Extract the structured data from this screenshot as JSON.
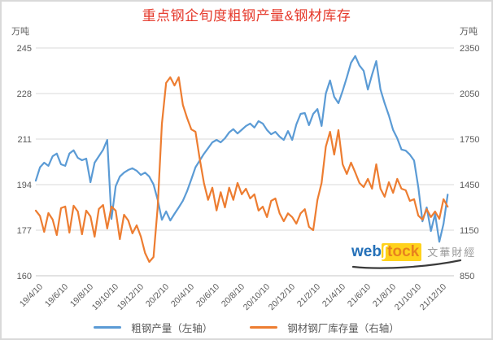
{
  "title": "重点钢企旬度粗钢产量&钢材库存",
  "left_axis": {
    "unit": "万吨",
    "ticks": [
      245,
      228,
      211,
      194,
      177,
      160
    ]
  },
  "right_axis": {
    "unit": "万吨",
    "ticks": [
      2350,
      2050,
      1750,
      1450,
      1150,
      850
    ]
  },
  "legend": [
    {
      "label": "粗钢产量（左轴）",
      "color": "#5B9BD5"
    },
    {
      "label": "钢材钢厂库存量（右轴）",
      "color": "#ED7D31"
    }
  ],
  "watermark": {
    "brand_prefix": "web",
    "brand_mark": "∫",
    "brand_suffix": "tock",
    "caption": "文華財經"
  },
  "colors": {
    "title": "#e5392b",
    "series_blue": "#5B9BD5",
    "series_orange": "#ED7D31",
    "gridline": "#d9d9d9",
    "axis_text": "#595959",
    "watermark_blue": "#2470b8",
    "watermark_orange": "#e8821e",
    "watermark_yellow": "#ffd21c"
  },
  "chart_data": {
    "type": "line",
    "title": "重点钢企旬度粗钢产量&钢材库存",
    "x_tick_labels": [
      "19/4/10",
      "19/6/10",
      "19/8/10",
      "19/10/10",
      "19/12/10",
      "20/2/10",
      "20/4/10",
      "20/6/10",
      "20/8/10",
      "20/10/10",
      "20/12/10",
      "21/2/10",
      "21/4/10",
      "21/6/10",
      "21/8/10",
      "21/10/10",
      "21/12/10"
    ],
    "points_per_tick": 6,
    "grid": true,
    "legend_position": "bottom",
    "left_ylim": [
      160,
      245
    ],
    "right_ylim": [
      850,
      2350
    ],
    "left_unit": "万吨",
    "right_unit": "万吨",
    "series": [
      {
        "name": "粗钢产量（左轴）",
        "axis": "left",
        "color": "#5B9BD5",
        "values": [
          195.5,
          200.5,
          202.2,
          201,
          204.6,
          205.6,
          201.6,
          201,
          205.6,
          206.8,
          204,
          203.1,
          203.7,
          194.9,
          202.2,
          204.6,
          207,
          210.7,
          181.2,
          193.4,
          197,
          198.5,
          199.5,
          200.1,
          199.2,
          197.6,
          198.5,
          197,
          194.1,
          188.4,
          180.9,
          184,
          180.6,
          183.1,
          185.5,
          188,
          191.6,
          196,
          200.5,
          203,
          205.5,
          207.6,
          209.8,
          210.7,
          209.8,
          211.3,
          213.5,
          214.7,
          213.1,
          214.5,
          215.9,
          216.8,
          215.3,
          217.7,
          216.8,
          214.4,
          212.8,
          213.7,
          211.9,
          210.7,
          214,
          210.7,
          216.5,
          220.4,
          220.7,
          216.2,
          220.4,
          222.2,
          215.9,
          228,
          232.9,
          226.8,
          224.4,
          229,
          234,
          239.5,
          242,
          238.5,
          236.5,
          229.5,
          235,
          240.1,
          229.5,
          224.4,
          219.8,
          214.4,
          211.3,
          207.1,
          206.7,
          205.2,
          203,
          193,
          180.3,
          185.5,
          176.7,
          183,
          172.7,
          179.4,
          190.3
        ]
      },
      {
        "name": "钢材钢厂库存量（右轴）",
        "axis": "right",
        "color": "#ED7D31",
        "values": [
          1279,
          1243,
          1139,
          1263,
          1220,
          1118,
          1295,
          1306,
          1134,
          1311,
          1273,
          1123,
          1279,
          1241,
          1107,
          1290,
          1316,
          1161,
          1306,
          1279,
          1091,
          1252,
          1214,
          1129,
          1182,
          1107,
          1000,
          941,
          973,
          1300,
          1850,
          2120,
          2157,
          2103,
          2157,
          1975,
          1889,
          1814,
          1798,
          1620,
          1460,
          1350,
          1430,
          1280,
          1400,
          1300,
          1430,
          1350,
          1461,
          1386,
          1423,
          1359,
          1386,
          1279,
          1305,
          1236,
          1343,
          1359,
          1261,
          1209,
          1261,
          1236,
          1193,
          1261,
          1288,
          1172,
          1150,
          1350,
          1461,
          1700,
          1798,
          1648,
          1809,
          1584,
          1520,
          1595,
          1530,
          1461,
          1434,
          1488,
          1423,
          1584,
          1423,
          1370,
          1466,
          1396,
          1488,
          1423,
          1413,
          1343,
          1354,
          1246,
          1220,
          1289,
          1236,
          1273,
          1225,
          1354,
          1305
        ]
      }
    ]
  }
}
